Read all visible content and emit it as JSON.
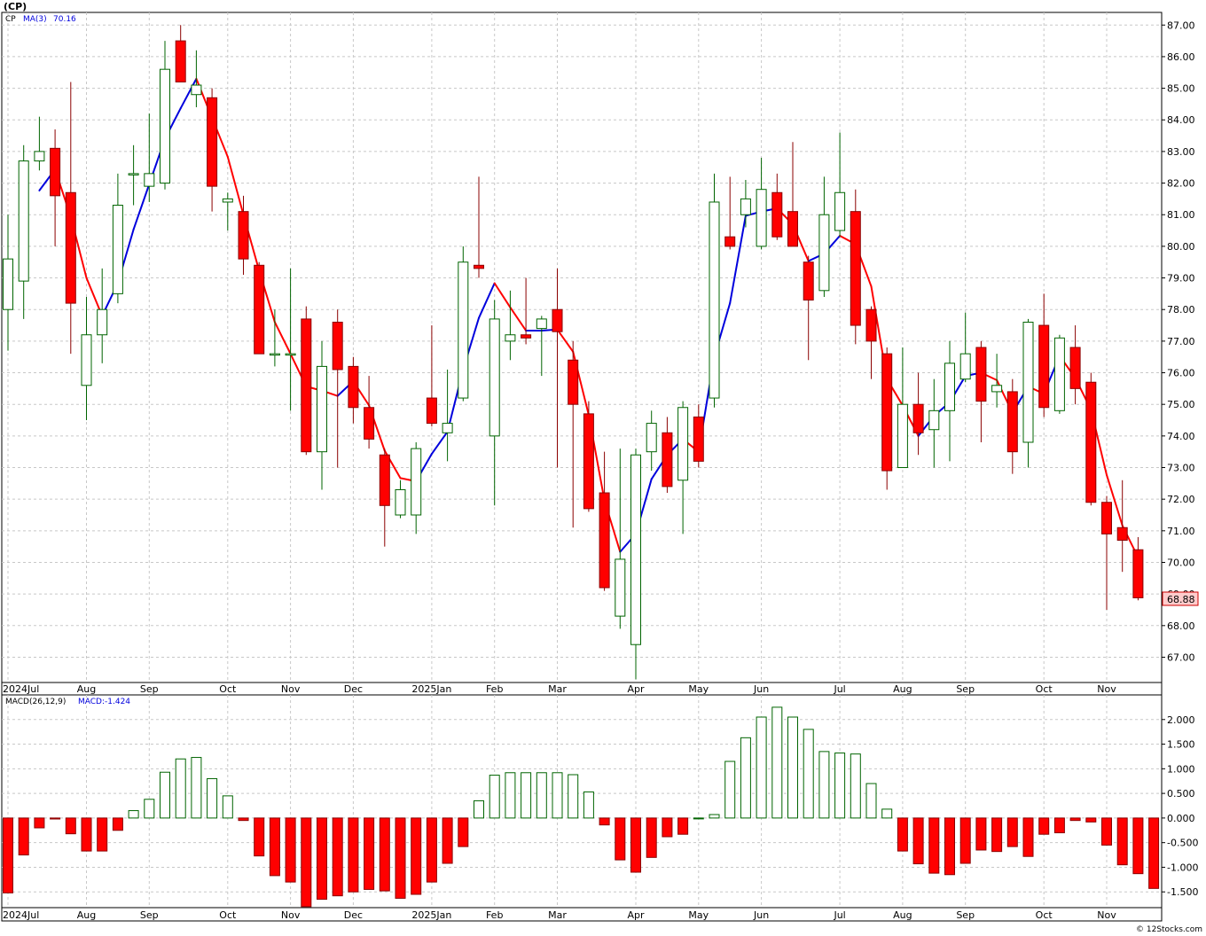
{
  "title": "(CP)",
  "watermark": "© 12Stocks.com",
  "price_panel": {
    "ticker_label": "CP",
    "ma_label": "MA(3)",
    "ma_value": "70.16",
    "last_price": "68.88"
  },
  "macd_panel": {
    "label": "MACD(26,12,9)",
    "value_label": "MACD:-1.424"
  },
  "colors": {
    "up_candle": "#006400",
    "down_candle": "#ff0000",
    "ma_up": "#0000dd",
    "ma_down": "#ff0000",
    "macd_pos": "#006400",
    "macd_neg": "#ff0000",
    "grid": "#c8c8c8",
    "last_price_bg": "#ffcccc"
  },
  "chart_data": [
    {
      "type": "candlestick",
      "ylim": [
        66.2,
        87.4
      ],
      "yticks": [
        67,
        68,
        69,
        70,
        71,
        72,
        73,
        74,
        75,
        76,
        77,
        78,
        79,
        80,
        81,
        82,
        83,
        84,
        85,
        86,
        87
      ],
      "ytick_labels": [
        "67.00",
        "68.00",
        "69.00",
        "70.00",
        "71.00",
        "72.00",
        "73.00",
        "74.00",
        "75.00",
        "76.00",
        "77.00",
        "78.00",
        "79.00",
        "80.00",
        "81.00",
        "82.00",
        "83.00",
        "84.00",
        "85.00",
        "86.00",
        "87.00"
      ],
      "x_labels": [
        {
          "week": 0,
          "text": "2024Jul"
        },
        {
          "week": 5,
          "text": "Aug"
        },
        {
          "week": 9,
          "text": "Sep"
        },
        {
          "week": 14,
          "text": "Oct"
        },
        {
          "week": 18,
          "text": "Nov"
        },
        {
          "week": 22,
          "text": "Dec"
        },
        {
          "week": 27,
          "text": "2025Jan"
        },
        {
          "week": 31,
          "text": "Feb"
        },
        {
          "week": 35,
          "text": "Mar"
        },
        {
          "week": 40,
          "text": "Apr"
        },
        {
          "week": 44,
          "text": "May"
        },
        {
          "week": 48,
          "text": "Jun"
        },
        {
          "week": 53,
          "text": "Jul"
        },
        {
          "week": 57,
          "text": "Aug"
        },
        {
          "week": 61,
          "text": "Sep"
        },
        {
          "week": 66,
          "text": "Oct"
        },
        {
          "week": 70,
          "text": "Nov"
        }
      ],
      "candles": [
        {
          "o": 78.0,
          "h": 81.0,
          "l": 76.7,
          "c": 79.6
        },
        {
          "o": 78.9,
          "h": 83.2,
          "l": 77.7,
          "c": 82.7
        },
        {
          "o": 82.7,
          "h": 84.1,
          "l": 82.4,
          "c": 83.0
        },
        {
          "o": 83.1,
          "h": 83.7,
          "l": 80.0,
          "c": 81.6
        },
        {
          "o": 81.7,
          "h": 85.2,
          "l": 76.6,
          "c": 78.2
        },
        {
          "o": 75.6,
          "h": 78.4,
          "l": 74.5,
          "c": 77.2
        },
        {
          "o": 77.2,
          "h": 79.3,
          "l": 76.3,
          "c": 78.0
        },
        {
          "o": 78.5,
          "h": 82.3,
          "l": 78.2,
          "c": 81.3
        },
        {
          "o": 82.3,
          "h": 83.2,
          "l": 81.3,
          "c": 82.3
        },
        {
          "o": 81.9,
          "h": 84.2,
          "l": 81.4,
          "c": 82.3
        },
        {
          "o": 82.0,
          "h": 86.5,
          "l": 81.8,
          "c": 85.6
        },
        {
          "o": 86.5,
          "h": 87.0,
          "l": 85.2,
          "c": 85.2
        },
        {
          "o": 84.8,
          "h": 86.2,
          "l": 84.4,
          "c": 85.1
        },
        {
          "o": 84.7,
          "h": 85.0,
          "l": 81.1,
          "c": 81.9
        },
        {
          "o": 81.4,
          "h": 81.7,
          "l": 80.5,
          "c": 81.5
        },
        {
          "o": 81.1,
          "h": 81.6,
          "l": 79.1,
          "c": 79.6
        },
        {
          "o": 79.4,
          "h": 79.5,
          "l": 76.6,
          "c": 76.6
        },
        {
          "o": 76.6,
          "h": 78.0,
          "l": 76.2,
          "c": 76.6
        },
        {
          "o": 76.6,
          "h": 79.3,
          "l": 74.8,
          "c": 76.6
        },
        {
          "o": 77.7,
          "h": 78.1,
          "l": 73.4,
          "c": 73.5
        },
        {
          "o": 73.5,
          "h": 77.0,
          "l": 72.3,
          "c": 76.2
        },
        {
          "o": 77.6,
          "h": 78.0,
          "l": 73.0,
          "c": 76.1
        },
        {
          "o": 76.2,
          "h": 76.5,
          "l": 74.4,
          "c": 74.9
        },
        {
          "o": 74.9,
          "h": 75.9,
          "l": 73.6,
          "c": 73.9
        },
        {
          "o": 73.4,
          "h": 73.6,
          "l": 70.5,
          "c": 71.8
        },
        {
          "o": 71.5,
          "h": 72.6,
          "l": 71.4,
          "c": 72.3
        },
        {
          "o": 71.5,
          "h": 73.8,
          "l": 70.9,
          "c": 73.6
        },
        {
          "o": 75.2,
          "h": 77.5,
          "l": 74.3,
          "c": 74.4
        },
        {
          "o": 74.1,
          "h": 76.1,
          "l": 73.2,
          "c": 74.4
        },
        {
          "o": 75.2,
          "h": 80.0,
          "l": 75.1,
          "c": 79.5
        },
        {
          "o": 79.4,
          "h": 82.2,
          "l": 79.0,
          "c": 79.3
        },
        {
          "o": 74.0,
          "h": 78.3,
          "l": 71.8,
          "c": 77.7
        },
        {
          "o": 77.0,
          "h": 78.6,
          "l": 76.4,
          "c": 77.2
        },
        {
          "o": 77.2,
          "h": 79.0,
          "l": 76.9,
          "c": 77.1
        },
        {
          "o": 77.4,
          "h": 77.8,
          "l": 75.9,
          "c": 77.7
        },
        {
          "o": 78.0,
          "h": 79.3,
          "l": 73.0,
          "c": 77.3
        },
        {
          "o": 76.4,
          "h": 77.0,
          "l": 71.1,
          "c": 75.0
        },
        {
          "o": 74.7,
          "h": 75.1,
          "l": 71.6,
          "c": 71.7
        },
        {
          "o": 72.2,
          "h": 73.5,
          "l": 69.1,
          "c": 69.2
        },
        {
          "o": 68.3,
          "h": 73.6,
          "l": 67.9,
          "c": 70.1
        },
        {
          "o": 67.4,
          "h": 73.6,
          "l": 66.3,
          "c": 73.4
        },
        {
          "o": 73.5,
          "h": 74.8,
          "l": 72.9,
          "c": 74.4
        },
        {
          "o": 74.1,
          "h": 74.6,
          "l": 72.2,
          "c": 72.4
        },
        {
          "o": 72.6,
          "h": 75.1,
          "l": 70.9,
          "c": 74.9
        },
        {
          "o": 74.6,
          "h": 75.0,
          "l": 73.0,
          "c": 73.2
        },
        {
          "o": 75.2,
          "h": 82.3,
          "l": 74.9,
          "c": 81.4
        },
        {
          "o": 80.3,
          "h": 82.2,
          "l": 79.9,
          "c": 80.0
        },
        {
          "o": 81.0,
          "h": 82.1,
          "l": 80.6,
          "c": 81.5
        },
        {
          "o": 80.0,
          "h": 82.8,
          "l": 79.9,
          "c": 81.8
        },
        {
          "o": 81.7,
          "h": 82.3,
          "l": 80.2,
          "c": 80.3
        },
        {
          "o": 81.1,
          "h": 83.3,
          "l": 80.0,
          "c": 80.0
        },
        {
          "o": 79.5,
          "h": 79.7,
          "l": 76.4,
          "c": 78.3
        },
        {
          "o": 78.6,
          "h": 82.2,
          "l": 78.4,
          "c": 81.0
        },
        {
          "o": 80.5,
          "h": 83.6,
          "l": 80.3,
          "c": 81.7
        },
        {
          "o": 81.1,
          "h": 81.8,
          "l": 76.9,
          "c": 77.5
        },
        {
          "o": 78.0,
          "h": 78.1,
          "l": 75.8,
          "c": 77.0
        },
        {
          "o": 76.6,
          "h": 76.8,
          "l": 72.3,
          "c": 72.9
        },
        {
          "o": 73.0,
          "h": 76.8,
          "l": 73.0,
          "c": 75.0
        },
        {
          "o": 75.0,
          "h": 76.0,
          "l": 73.4,
          "c": 74.1
        },
        {
          "o": 74.2,
          "h": 75.8,
          "l": 73.0,
          "c": 74.8
        },
        {
          "o": 74.8,
          "h": 77.0,
          "l": 73.2,
          "c": 76.3
        },
        {
          "o": 75.8,
          "h": 77.9,
          "l": 75.7,
          "c": 76.6
        },
        {
          "o": 76.8,
          "h": 77.0,
          "l": 73.8,
          "c": 75.1
        },
        {
          "o": 75.4,
          "h": 76.6,
          "l": 74.9,
          "c": 75.6
        },
        {
          "o": 75.4,
          "h": 75.8,
          "l": 72.8,
          "c": 73.5
        },
        {
          "o": 73.8,
          "h": 77.7,
          "l": 73.0,
          "c": 77.6
        },
        {
          "o": 77.5,
          "h": 78.5,
          "l": 74.6,
          "c": 74.9
        },
        {
          "o": 74.8,
          "h": 77.2,
          "l": 74.7,
          "c": 77.1
        },
        {
          "o": 76.8,
          "h": 77.5,
          "l": 75.0,
          "c": 75.5
        },
        {
          "o": 75.7,
          "h": 76.0,
          "l": 71.8,
          "c": 71.9
        },
        {
          "o": 71.9,
          "h": 72.1,
          "l": 68.5,
          "c": 70.9
        },
        {
          "o": 71.1,
          "h": 72.6,
          "l": 69.7,
          "c": 70.7
        },
        {
          "o": 70.4,
          "h": 70.8,
          "l": 68.8,
          "c": 68.88
        }
      ]
    },
    {
      "type": "bar",
      "ylim": [
        -1.82,
        2.5
      ],
      "yticks": [
        -1.5,
        -1.0,
        -0.5,
        0.0,
        0.5,
        1.0,
        1.5,
        2.0
      ],
      "ytick_labels": [
        "-1.500",
        "-1.000",
        "-0.500",
        "0.000",
        "0.500",
        "1.000",
        "1.500",
        "2.000"
      ],
      "values": [
        -1.52,
        -0.75,
        -0.2,
        -0.02,
        -0.32,
        -0.67,
        -0.67,
        -0.25,
        0.15,
        0.38,
        0.93,
        1.2,
        1.23,
        0.8,
        0.45,
        -0.05,
        -0.77,
        -1.17,
        -1.3,
        -1.8,
        -1.65,
        -1.58,
        -1.5,
        -1.45,
        -1.48,
        -1.63,
        -1.55,
        -1.3,
        -0.92,
        -0.58,
        0.35,
        0.87,
        0.92,
        0.92,
        0.92,
        0.92,
        0.88,
        0.53,
        -0.14,
        -0.85,
        -1.1,
        -0.8,
        -0.38,
        -0.33,
        0.0,
        0.07,
        1.15,
        1.63,
        2.05,
        2.25,
        2.05,
        1.8,
        1.35,
        1.32,
        1.3,
        0.7,
        0.18,
        -0.67,
        -0.93,
        -1.12,
        -1.15,
        -0.92,
        -0.65,
        -0.68,
        -0.58,
        -0.78,
        -0.33,
        -0.3,
        -0.05,
        -0.08,
        -0.55,
        -0.95,
        -1.13,
        -1.43
      ]
    }
  ]
}
